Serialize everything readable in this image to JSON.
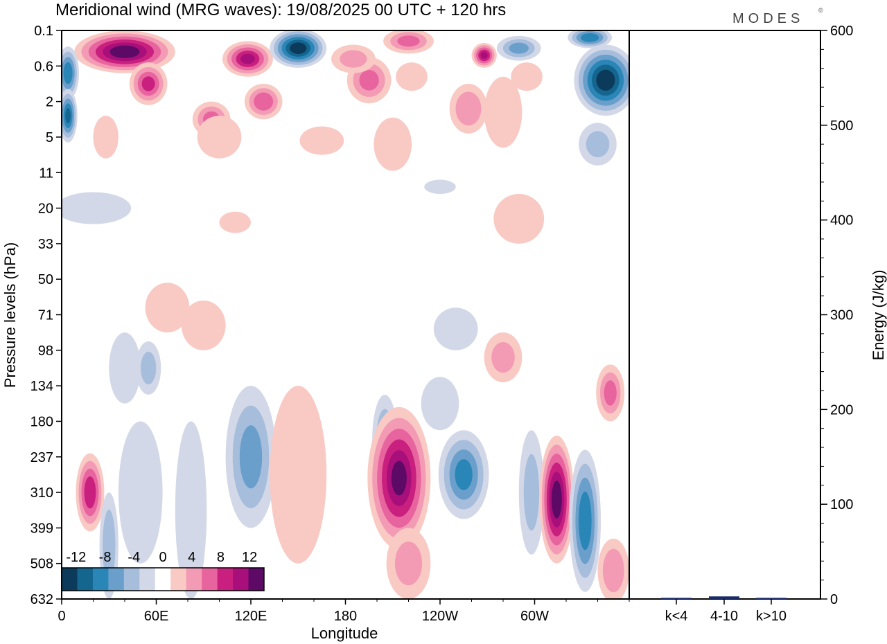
{
  "header": {
    "title": "Meridional wind (MRG waves):  19/08/2025  00 UTC  + 120 hrs",
    "brand": "MODES",
    "brand_mark": "©"
  },
  "colors": {
    "c_neg12": "#0b3a5a",
    "c_neg10": "#14668f",
    "c_neg8": "#2b86b8",
    "c_neg6": "#6a9fcb",
    "c_neg4": "#a6bddc",
    "c_neg2": "#d3d8e8",
    "c_zero": "#ffffff",
    "c_pos2": "#f9c9c4",
    "c_pos4": "#f39bb4",
    "c_pos6": "#e8649e",
    "c_pos8": "#c9207f",
    "c_pos10": "#a80f7a",
    "c_pos12": "#5c0a66",
    "bar": "#1a2a66"
  },
  "chart_data": [
    {
      "type": "heatmap",
      "title": "Meridional wind (MRG waves):  19/08/2025  00 UTC  + 120 hrs",
      "xlabel": "Longitude",
      "ylabel": "Pressure levels (hPa)",
      "x_ticks": [
        "0",
        "60E",
        "120E",
        "180",
        "120W",
        "60W"
      ],
      "x_tick_degrees": [
        0,
        60,
        120,
        180,
        240,
        300
      ],
      "xlim": [
        0,
        360
      ],
      "y_ticks": [
        "0.1",
        "0.6",
        "2",
        "5",
        "11",
        "20",
        "33",
        "50",
        "71",
        "98",
        "134",
        "180",
        "237",
        "310",
        "399",
        "508",
        "632"
      ],
      "colorbar": {
        "levels": [
          -14,
          -12,
          -10,
          -8,
          -6,
          -4,
          -2,
          2,
          4,
          6,
          8,
          10,
          12,
          14
        ],
        "labels": [
          "-12",
          "-8",
          "-4",
          "0",
          "4",
          "8",
          "12"
        ],
        "label_values": [
          -12,
          -8,
          -4,
          0,
          4,
          8,
          12
        ]
      },
      "features": [
        {
          "lon": 18,
          "level": 13.0,
          "value": 9,
          "w": 9,
          "h": 2.2
        },
        {
          "lon": 30,
          "level": 14.5,
          "value": -5,
          "w": 6,
          "h": 3
        },
        {
          "lon": 40,
          "level": 9.5,
          "value": -3,
          "w": 10,
          "h": 2
        },
        {
          "lon": 50,
          "level": 13.0,
          "value": -3,
          "w": 14,
          "h": 4
        },
        {
          "lon": 55,
          "level": 9.5,
          "value": -4,
          "w": 8,
          "h": 1.5
        },
        {
          "lon": 82,
          "level": 13.5,
          "value": -2,
          "w": 10,
          "h": 5
        },
        {
          "lon": 67,
          "level": 7.8,
          "value": 2,
          "w": 14,
          "h": 1.4
        },
        {
          "lon": 120,
          "level": 12.0,
          "value": -6,
          "w": 16,
          "h": 4
        },
        {
          "lon": 150,
          "level": 12.5,
          "value": 2,
          "w": 18,
          "h": 5
        },
        {
          "lon": 205,
          "level": 11.5,
          "value": -5,
          "w": 8,
          "h": 2.5
        },
        {
          "lon": 214,
          "level": 12.6,
          "value": 12,
          "w": 20,
          "h": 4
        },
        {
          "lon": 220,
          "level": 15.0,
          "value": 4,
          "w": 14,
          "h": 2
        },
        {
          "lon": 255,
          "level": 12.5,
          "value": -8,
          "w": 16,
          "h": 2.5
        },
        {
          "lon": 240,
          "level": 10.5,
          "value": -3,
          "w": 12,
          "h": 1.5
        },
        {
          "lon": 280,
          "level": 9.2,
          "value": 4,
          "w": 12,
          "h": 1.4
        },
        {
          "lon": 298,
          "level": 13.0,
          "value": -4,
          "w": 8,
          "h": 3.5
        },
        {
          "lon": 314,
          "level": 13.2,
          "value": 13,
          "w": 11,
          "h": 3.6
        },
        {
          "lon": 332,
          "level": 13.8,
          "value": -9,
          "w": 10,
          "h": 4
        },
        {
          "lon": 348,
          "level": 10.2,
          "value": 6,
          "w": 9,
          "h": 1.6
        },
        {
          "lon": 350,
          "level": 15.2,
          "value": 5,
          "w": 10,
          "h": 1.8
        },
        {
          "lon": 90,
          "level": 8.3,
          "value": 3,
          "w": 14,
          "h": 1.4
        },
        {
          "lon": 250,
          "level": 8.4,
          "value": -2,
          "w": 14,
          "h": 1.2
        },
        {
          "lon": 40,
          "level": 0.6,
          "value": 13,
          "w": 32,
          "h": 1.2
        },
        {
          "lon": 55,
          "level": 1.5,
          "value": 8,
          "w": 12,
          "h": 1.2
        },
        {
          "lon": 4,
          "level": 1.2,
          "value": -9,
          "w": 7,
          "h": 1.5
        },
        {
          "lon": 4,
          "level": 2.4,
          "value": -10,
          "w": 6,
          "h": 1.5
        },
        {
          "lon": 118,
          "level": 0.8,
          "value": 10,
          "w": 16,
          "h": 1.0
        },
        {
          "lon": 150,
          "level": 0.5,
          "value": -13,
          "w": 18,
          "h": 1.1
        },
        {
          "lon": 128,
          "level": 2.0,
          "value": 7,
          "w": 12,
          "h": 1.0
        },
        {
          "lon": 95,
          "level": 2.5,
          "value": 6,
          "w": 12,
          "h": 1.0
        },
        {
          "lon": 195,
          "level": 1.4,
          "value": 6,
          "w": 14,
          "h": 1.3
        },
        {
          "lon": 220,
          "level": 0.3,
          "value": 6,
          "w": 16,
          "h": 0.7
        },
        {
          "lon": 222,
          "level": 1.3,
          "value": 3,
          "w": 10,
          "h": 0.8
        },
        {
          "lon": 185,
          "level": 0.8,
          "value": 4,
          "w": 14,
          "h": 0.8
        },
        {
          "lon": 268,
          "level": 0.7,
          "value": 10,
          "w": 8,
          "h": 0.7
        },
        {
          "lon": 290,
          "level": 0.5,
          "value": -6,
          "w": 14,
          "h": 0.7
        },
        {
          "lon": 258,
          "level": 2.2,
          "value": 5,
          "w": 12,
          "h": 1.4
        },
        {
          "lon": 345,
          "level": 1.4,
          "value": -13,
          "w": 20,
          "h": 2.0
        },
        {
          "lon": 335,
          "level": 0.2,
          "value": -9,
          "w": 14,
          "h": 0.6
        },
        {
          "lon": 340,
          "level": 3.2,
          "value": -4,
          "w": 12,
          "h": 1.2
        },
        {
          "lon": 295,
          "level": 1.3,
          "value": 2,
          "w": 10,
          "h": 0.8
        },
        {
          "lon": 165,
          "level": 3.1,
          "value": 2,
          "w": 14,
          "h": 0.8
        },
        {
          "lon": 100,
          "level": 3.0,
          "value": 2,
          "w": 14,
          "h": 1.2
        },
        {
          "lon": 28,
          "level": 3.0,
          "value": 3,
          "w": 8,
          "h": 1.2
        },
        {
          "lon": 210,
          "level": 3.2,
          "value": 2,
          "w": 12,
          "h": 1.5
        },
        {
          "lon": 20,
          "level": 5.0,
          "value": -2,
          "w": 24,
          "h": 0.9
        },
        {
          "lon": 110,
          "level": 5.4,
          "value": 2,
          "w": 10,
          "h": 0.6
        },
        {
          "lon": 290,
          "level": 5.3,
          "value": 2,
          "w": 16,
          "h": 1.4
        },
        {
          "lon": 280,
          "level": 2.3,
          "value": 2,
          "w": 12,
          "h": 2.0
        },
        {
          "lon": 240,
          "level": 4.4,
          "value": -2,
          "w": 10,
          "h": 0.4
        }
      ]
    },
    {
      "type": "bar",
      "ylabel": "Energy (J/kg)",
      "categories": [
        "k<4",
        "4-10",
        "k>10"
      ],
      "values": [
        0.5,
        2,
        0.5
      ],
      "ylim": [
        0,
        600
      ],
      "y_ticks": [
        "0",
        "100",
        "200",
        "300",
        "400",
        "500",
        "600"
      ],
      "y_tick_values": [
        0,
        100,
        200,
        300,
        400,
        500,
        600
      ]
    }
  ]
}
